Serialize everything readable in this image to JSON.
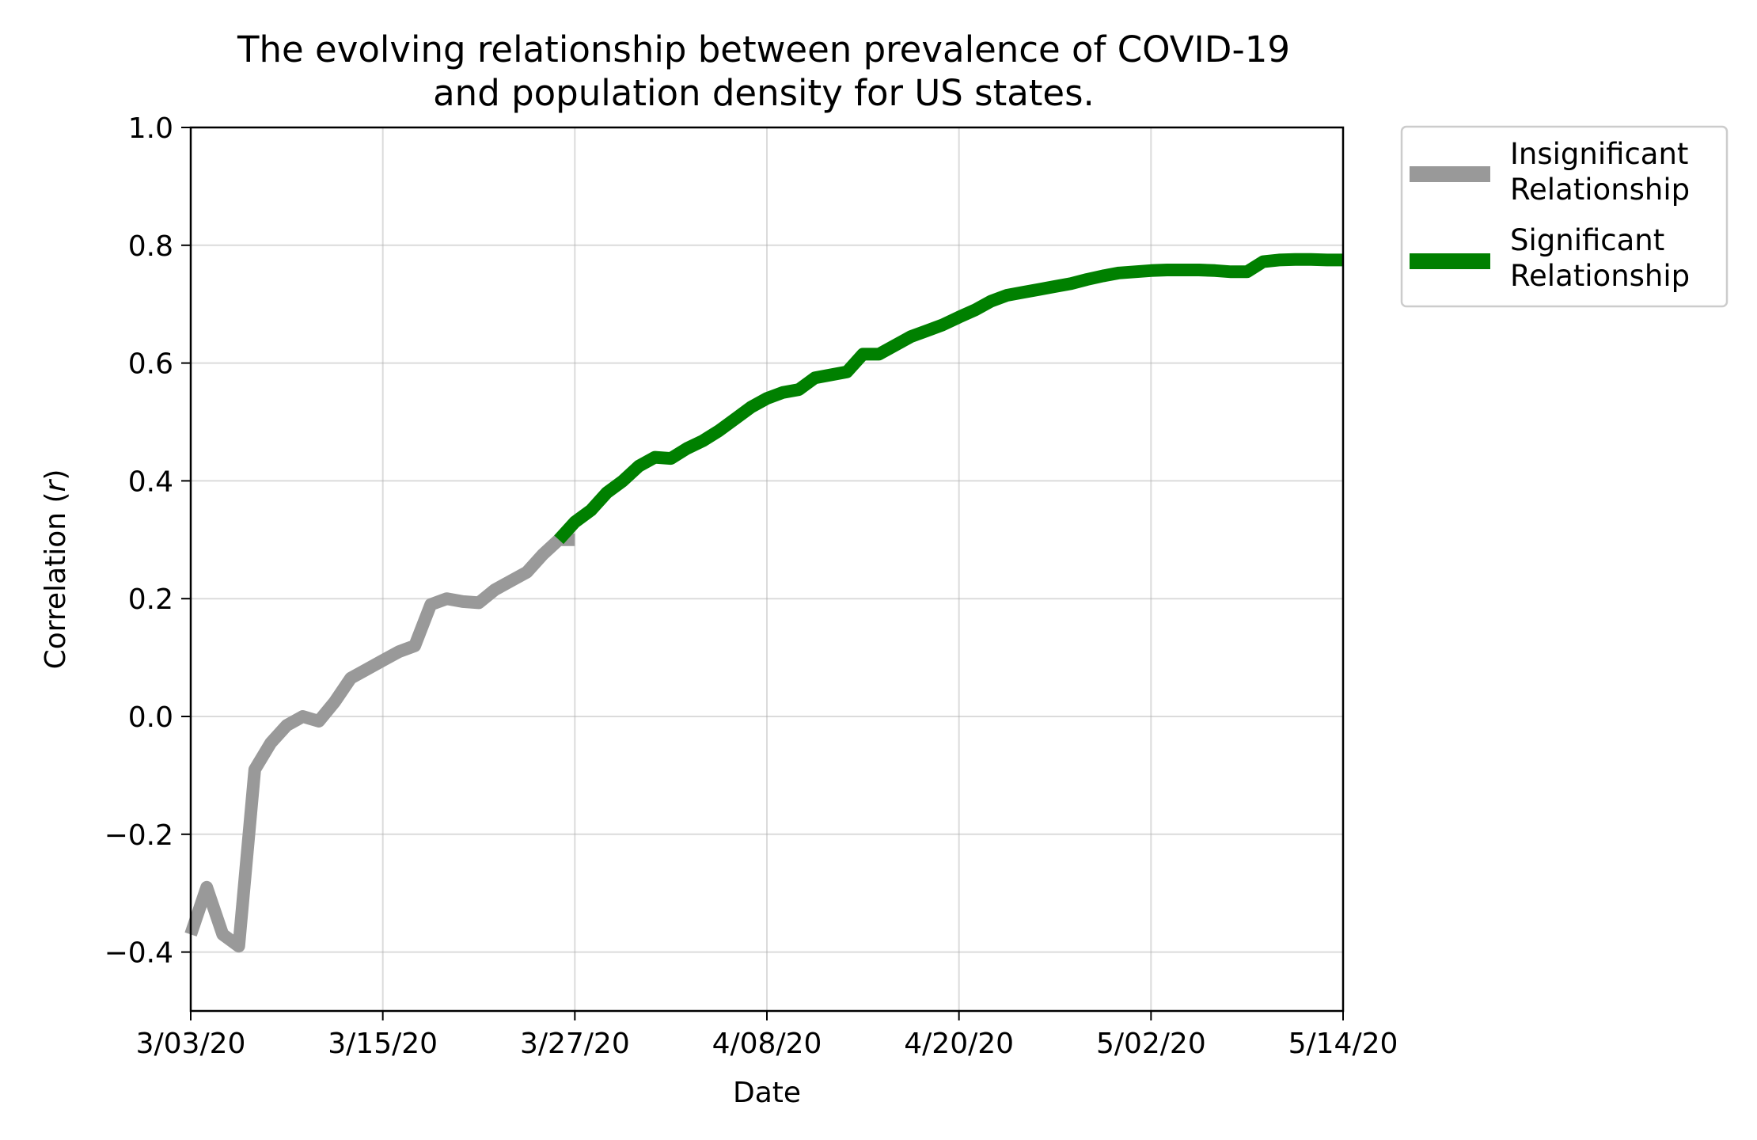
{
  "chart_data": {
    "type": "line",
    "title": "The evolving relationship between prevalence of COVID-19 and population density for US states.",
    "title_lines": [
      "The evolving relationship between prevalence of COVID-19",
      "and population density for US states."
    ],
    "xlabel": "Date",
    "ylabel_prefix": "Correlation (",
    "ylabel_var": "r",
    "ylabel_suffix": ")",
    "ylim": [
      -0.5,
      1.0
    ],
    "xlim": [
      "2020-03-03",
      "2020-05-14"
    ],
    "x_tick_labels": [
      "3/03/20",
      "3/15/20",
      "3/27/20",
      "4/08/20",
      "4/20/20",
      "5/02/20",
      "5/14/20"
    ],
    "x_tick_dates": [
      "2020-03-03",
      "2020-03-15",
      "2020-03-27",
      "2020-04-08",
      "2020-04-20",
      "2020-05-02",
      "2020-05-14"
    ],
    "y_tick_labels": [
      "−0.4",
      "−0.2",
      "0.0",
      "0.2",
      "0.4",
      "0.6",
      "0.8",
      "1.0"
    ],
    "y_tick_values": [
      -0.4,
      -0.2,
      0.0,
      0.2,
      0.4,
      0.6,
      0.8,
      1.0
    ],
    "grid": true,
    "legend_position": "outside-top-right",
    "series": [
      {
        "name": "Insignificant Relationship",
        "legend_lines": [
          "Insignificant",
          "Relationship"
        ],
        "color": "#999999",
        "x": [
          "2020-03-03",
          "2020-03-04",
          "2020-03-05",
          "2020-03-06",
          "2020-03-07",
          "2020-03-08",
          "2020-03-09",
          "2020-03-10",
          "2020-03-11",
          "2020-03-12",
          "2020-03-13",
          "2020-03-14",
          "2020-03-15",
          "2020-03-16",
          "2020-03-17",
          "2020-03-18",
          "2020-03-19",
          "2020-03-20",
          "2020-03-21",
          "2020-03-22",
          "2020-03-23",
          "2020-03-24",
          "2020-03-25",
          "2020-03-26",
          "2020-03-27"
        ],
        "y": [
          -0.37,
          -0.29,
          -0.37,
          -0.39,
          -0.09,
          -0.045,
          -0.015,
          0.0,
          -0.008,
          0.025,
          0.065,
          0.08,
          0.095,
          0.11,
          0.12,
          0.19,
          0.2,
          0.195,
          0.193,
          0.215,
          0.23,
          0.245,
          0.275,
          0.3,
          0.3
        ]
      },
      {
        "name": "Significant Relationship",
        "legend_lines": [
          "Significant",
          "Relationship"
        ],
        "color": "#008000",
        "x": [
          "2020-03-26",
          "2020-03-27",
          "2020-03-28",
          "2020-03-29",
          "2020-03-30",
          "2020-03-31",
          "2020-04-01",
          "2020-04-02",
          "2020-04-03",
          "2020-04-04",
          "2020-04-05",
          "2020-04-06",
          "2020-04-07",
          "2020-04-08",
          "2020-04-09",
          "2020-04-10",
          "2020-04-11",
          "2020-04-12",
          "2020-04-13",
          "2020-04-14",
          "2020-04-15",
          "2020-04-16",
          "2020-04-17",
          "2020-04-18",
          "2020-04-19",
          "2020-04-20",
          "2020-04-21",
          "2020-04-22",
          "2020-04-23",
          "2020-04-24",
          "2020-04-25",
          "2020-04-26",
          "2020-04-27",
          "2020-04-28",
          "2020-04-29",
          "2020-04-30",
          "2020-05-01",
          "2020-05-02",
          "2020-05-03",
          "2020-05-04",
          "2020-05-05",
          "2020-05-06",
          "2020-05-07",
          "2020-05-08",
          "2020-05-09",
          "2020-05-10",
          "2020-05-11",
          "2020-05-12",
          "2020-05-13",
          "2020-05-14"
        ],
        "y": [
          0.3,
          0.33,
          0.35,
          0.38,
          0.4,
          0.425,
          0.44,
          0.438,
          0.455,
          0.468,
          0.485,
          0.505,
          0.525,
          0.54,
          0.55,
          0.555,
          0.575,
          0.58,
          0.585,
          0.615,
          0.615,
          0.63,
          0.645,
          0.655,
          0.665,
          0.678,
          0.69,
          0.705,
          0.715,
          0.72,
          0.725,
          0.73,
          0.735,
          0.742,
          0.748,
          0.753,
          0.755,
          0.757,
          0.758,
          0.758,
          0.758,
          0.757,
          0.755,
          0.755,
          0.772,
          0.775,
          0.776,
          0.776,
          0.775,
          0.775
        ]
      }
    ]
  }
}
